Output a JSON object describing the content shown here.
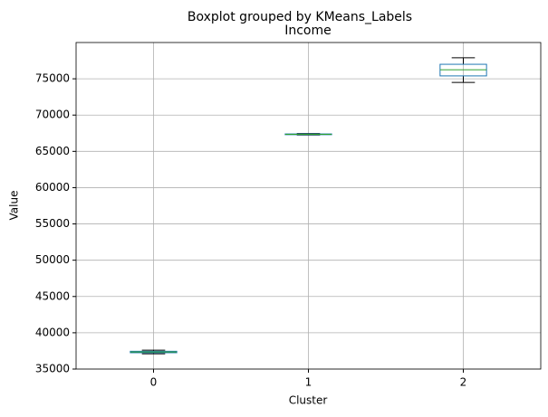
{
  "chart_data": {
    "type": "box",
    "title": "Boxplot grouped by KMeans_Labels",
    "subtitle": "Income",
    "x_label": "Cluster",
    "y_label": "Value",
    "categories": [
      "0",
      "1",
      "2"
    ],
    "min": [
      37100,
      67250,
      74500
    ],
    "q1": [
      37250,
      67300,
      75400
    ],
    "median": [
      37350,
      67350,
      76250
    ],
    "q3": [
      37450,
      67400,
      77000
    ],
    "max": [
      37600,
      67450,
      77900
    ],
    "box_color": "#1f77b4",
    "median_color": "#2ca02c",
    "whisker_color": "#000000",
    "ylim": [
      35000,
      80000
    ],
    "yticks": [
      35000,
      40000,
      45000,
      50000,
      55000,
      60000,
      65000,
      70000,
      75000
    ],
    "grid": true
  }
}
